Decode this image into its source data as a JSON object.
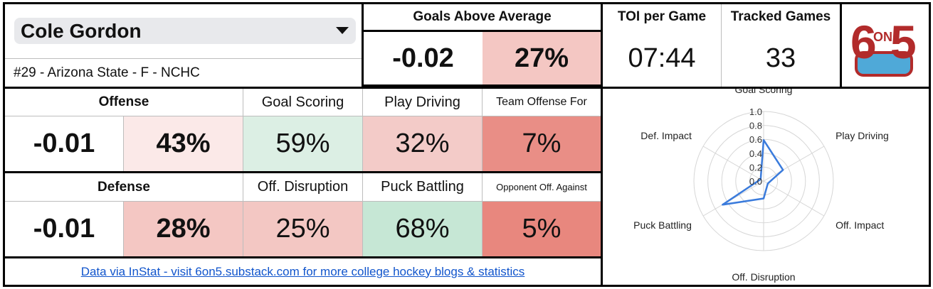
{
  "player": {
    "name": "Cole Gordon",
    "info": "#29 - Arizona State - F - NCHC"
  },
  "gaa": {
    "label": "Goals Above Average",
    "value": "-0.02",
    "pct": "27%"
  },
  "toi": {
    "label": "TOI per Game",
    "value": "07:44"
  },
  "games": {
    "label": "Tracked Games",
    "value": "33"
  },
  "logo": {
    "text_main": "6",
    "text_on": "ON",
    "text_end": "5"
  },
  "offense": {
    "label": "Offense",
    "value": "-0.01",
    "pct": "43%",
    "metrics": [
      {
        "label": "Goal Scoring",
        "value": "59%",
        "color": "#dcefe4"
      },
      {
        "label": "Play Driving",
        "value": "32%",
        "color": "#f3cbc8"
      },
      {
        "label": "Team Offense For",
        "value": "7%",
        "color": "#e98e86"
      }
    ]
  },
  "defense": {
    "label": "Defense",
    "value": "-0.01",
    "pct": "28%",
    "metrics": [
      {
        "label": "Off. Disruption",
        "value": "25%",
        "color": "#f3c7c3"
      },
      {
        "label": "Puck Battling",
        "value": "68%",
        "color": "#c6e7d5"
      },
      {
        "label": "Opponent Off. Against",
        "value": "5%",
        "color": "#e8877e"
      }
    ]
  },
  "footer": {
    "link_text": "Data via InStat - visit 6on5.substack.com for more college hockey blogs & statistics"
  },
  "colors": {
    "gaa_pct_bg": "#f4c7c3",
    "offense_pct_bg": "#fbe9e8",
    "defense_pct_bg": "#f4c7c3",
    "radar_line": "#3a7bdc",
    "logo_red": "#b22b2b",
    "logo_blue": "#4fa9d8"
  },
  "chart_data": {
    "type": "radar",
    "categories": [
      "Goal Scoring",
      "Play Driving",
      "Off. Impact",
      "Off. Disruption",
      "Puck Battling",
      "Def. Impact"
    ],
    "values": [
      0.59,
      0.32,
      0.07,
      0.25,
      0.68,
      0.05
    ],
    "rlim": [
      0,
      1.0
    ],
    "ticks": [
      "0.0",
      "0.2",
      "0.4",
      "0.6",
      "0.8",
      "1.0"
    ],
    "grid": true
  }
}
